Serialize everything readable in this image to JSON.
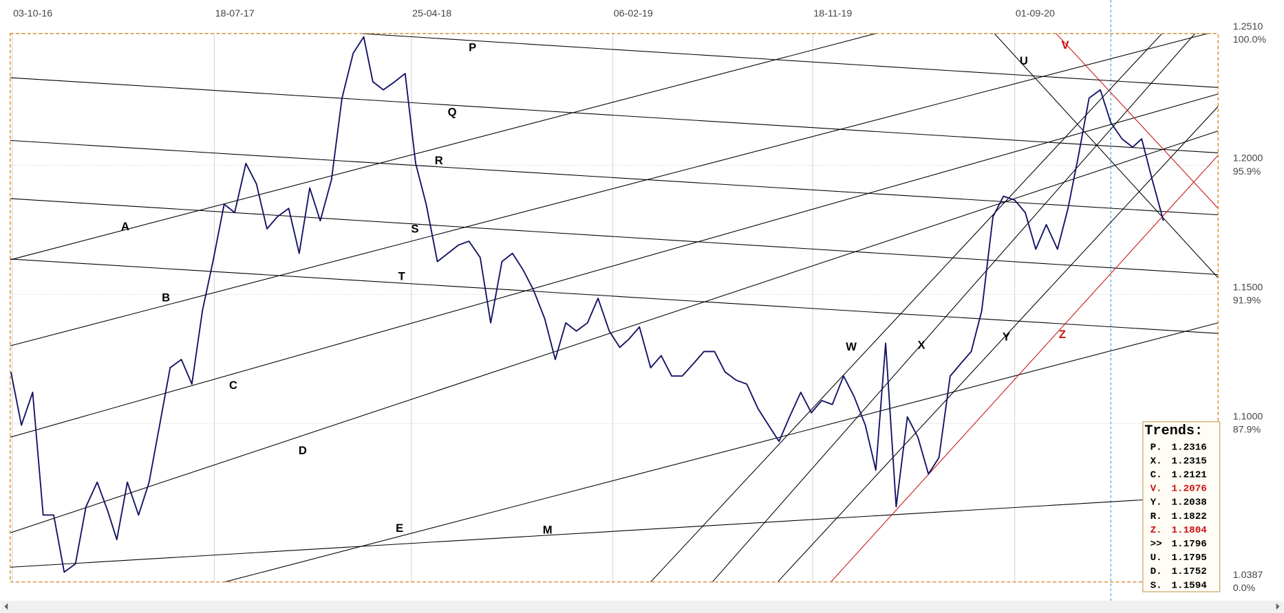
{
  "chart_data": {
    "type": "line",
    "color": "#141466",
    "xlim": [
      "2016-09-30",
      "2021-06-18"
    ],
    "xticks": [
      {
        "value": "2016-10-03",
        "label": "03-10-16"
      },
      {
        "value": "2017-07-18",
        "label": "18-07-17"
      },
      {
        "value": "2018-04-25",
        "label": "25-04-18"
      },
      {
        "value": "2019-02-06",
        "label": "06-02-19"
      },
      {
        "value": "2019-11-18",
        "label": "18-11-19"
      },
      {
        "value": "2020-09-01",
        "label": "01-09-20"
      }
    ],
    "ylim": [
      1.0387,
      1.251
    ],
    "yticks": [
      {
        "value": 1.251,
        "label": "1.2510"
      },
      {
        "value": 1.2,
        "label": "1.2000"
      },
      {
        "value": 1.15,
        "label": "1.1500"
      },
      {
        "value": 1.1,
        "label": "1.1000"
      },
      {
        "value": 1.0387,
        "label": "1.0387"
      }
    ],
    "ytick_percent_labels": [
      "100.0%",
      "95.9%",
      "91.9%",
      "87.9%",
      "0.0%"
    ],
    "grid": true,
    "crosshair_x": "2021-01-16",
    "x": [
      "2016-10-01",
      "2016-10-16",
      "2016-11-01",
      "2016-11-16",
      "2016-12-01",
      "2016-12-16",
      "2017-01-01",
      "2017-01-16",
      "2017-02-01",
      "2017-02-16",
      "2017-03-01",
      "2017-03-16",
      "2017-04-01",
      "2017-04-16",
      "2017-05-01",
      "2017-05-16",
      "2017-06-01",
      "2017-06-16",
      "2017-07-01",
      "2017-07-16",
      "2017-08-01",
      "2017-08-16",
      "2017-09-01",
      "2017-09-16",
      "2017-10-01",
      "2017-10-16",
      "2017-11-01",
      "2017-11-16",
      "2017-12-01",
      "2017-12-16",
      "2018-01-01",
      "2018-01-16",
      "2018-02-01",
      "2018-02-16",
      "2018-03-01",
      "2018-03-16",
      "2018-04-01",
      "2018-04-16",
      "2018-05-01",
      "2018-05-16",
      "2018-06-01",
      "2018-06-16",
      "2018-07-01",
      "2018-07-16",
      "2018-08-01",
      "2018-08-16",
      "2018-09-01",
      "2018-09-16",
      "2018-10-01",
      "2018-10-16",
      "2018-11-01",
      "2018-11-16",
      "2018-12-01",
      "2018-12-16",
      "2019-01-01",
      "2019-01-16",
      "2019-02-01",
      "2019-02-16",
      "2019-03-01",
      "2019-03-16",
      "2019-04-01",
      "2019-04-16",
      "2019-05-01",
      "2019-05-16",
      "2019-06-01",
      "2019-06-16",
      "2019-07-01",
      "2019-07-16",
      "2019-08-01",
      "2019-08-16",
      "2019-09-01",
      "2019-09-16",
      "2019-10-01",
      "2019-10-16",
      "2019-11-01",
      "2019-11-16",
      "2019-12-01",
      "2019-12-16",
      "2020-01-01",
      "2020-01-16",
      "2020-02-01",
      "2020-02-16",
      "2020-03-01",
      "2020-03-16",
      "2020-04-01",
      "2020-04-16",
      "2020-05-01",
      "2020-05-16",
      "2020-06-01",
      "2020-06-16",
      "2020-07-01",
      "2020-07-16",
      "2020-08-01",
      "2020-08-16",
      "2020-09-01",
      "2020-09-16",
      "2020-10-01",
      "2020-10-16",
      "2020-11-01",
      "2020-11-16",
      "2020-12-01",
      "2020-12-16",
      "2021-01-01",
      "2021-01-16",
      "2021-02-01",
      "2021-02-16",
      "2021-03-01",
      "2021-03-16",
      "2021-04-01"
    ],
    "values": [
      1.12,
      1.0994,
      1.1121,
      1.0646,
      1.0646,
      1.0425,
      1.0457,
      1.0678,
      1.0773,
      1.0662,
      1.0551,
      1.0773,
      1.0646,
      1.0773,
      1.0994,
      1.1216,
      1.1248,
      1.1153,
      1.1437,
      1.1627,
      1.1849,
      1.1817,
      1.2007,
      1.1928,
      1.1754,
      1.1801,
      1.1833,
      1.1659,
      1.1912,
      1.1785,
      1.1944,
      1.226,
      1.2434,
      1.2497,
      1.2323,
      1.2292,
      1.2323,
      1.2355,
      1.2007,
      1.1849,
      1.1627,
      1.1659,
      1.1691,
      1.1706,
      1.1643,
      1.139,
      1.1627,
      1.1659,
      1.1596,
      1.1517,
      1.1406,
      1.1248,
      1.139,
      1.1358,
      1.139,
      1.1485,
      1.1358,
      1.1295,
      1.1327,
      1.1374,
      1.1216,
      1.1263,
      1.1184,
      1.1184,
      1.1232,
      1.1279,
      1.1279,
      1.12,
      1.1168,
      1.1153,
      1.1058,
      1.0994,
      1.0931,
      1.1026,
      1.1121,
      1.1042,
      1.1089,
      1.1074,
      1.1184,
      1.1105,
      1.0994,
      1.082,
      1.1311,
      1.0678,
      1.1026,
      1.0947,
      1.0805,
      1.0868,
      1.1184,
      1.1232,
      1.1279,
      1.1437,
      1.1801,
      1.188,
      1.1865,
      1.1817,
      1.1675,
      1.177,
      1.1675,
      1.1833,
      1.2039,
      1.226,
      1.2292,
      1.2165,
      1.2102,
      1.207,
      1.2102,
      1.1944,
      1.1785
    ],
    "trend_lines": [
      {
        "label": "P",
        "color": "#000000",
        "points": [
          [
            "2018-02-11",
            1.251
          ],
          [
            "2021-06-18",
            1.2301
          ]
        ],
        "label_at": [
          "2018-07-21",
          1.2453
        ]
      },
      {
        "label": "Q",
        "color": "#000000",
        "points": [
          [
            "2016-09-30",
            1.2339
          ],
          [
            "2021-06-18",
            1.2048
          ]
        ],
        "label_at": [
          "2018-06-22",
          1.2203
        ]
      },
      {
        "label": "R",
        "color": "#000000",
        "points": [
          [
            "2016-09-30",
            1.2096
          ],
          [
            "2021-06-18",
            1.1808
          ]
        ],
        "label_at": [
          "2018-06-03",
          1.2016
        ]
      },
      {
        "label": "S",
        "color": "#000000",
        "points": [
          [
            "2016-09-30",
            1.1871
          ],
          [
            "2021-06-18",
            1.1577
          ]
        ],
        "label_at": [
          "2018-04-30",
          1.1751
        ]
      },
      {
        "label": "T",
        "color": "#000000",
        "points": [
          [
            "2016-09-30",
            1.1637
          ],
          [
            "2021-06-18",
            1.1349
          ]
        ],
        "label_at": [
          "2018-04-11",
          1.1567
        ]
      },
      {
        "label": "A",
        "color": "#000000",
        "points": [
          [
            "2016-09-30",
            1.1634
          ],
          [
            "2020-02-16",
            1.251
          ]
        ],
        "label_at": [
          "2017-03-13",
          1.176
        ]
      },
      {
        "label": "B",
        "color": "#000000",
        "points": [
          [
            "2016-09-30",
            1.1301
          ],
          [
            "2021-06-03",
            1.251
          ]
        ],
        "label_at": [
          "2017-05-10",
          1.1485
        ]
      },
      {
        "label": "C",
        "color": "#000000",
        "points": [
          [
            "2016-09-30",
            1.0947
          ],
          [
            "2021-06-18",
            1.2276
          ]
        ],
        "label_at": [
          "2017-08-14",
          1.1146
        ]
      },
      {
        "label": "D",
        "color": "#000000",
        "points": [
          [
            "2016-09-30",
            1.0577
          ],
          [
            "2021-06-18",
            1.2133
          ]
        ],
        "label_at": [
          "2017-11-21",
          1.0893
        ]
      },
      {
        "label": "E",
        "color": "#000000",
        "points": [
          [
            "2017-08-02",
            1.0387
          ],
          [
            "2021-06-18",
            1.139
          ]
        ],
        "label_at": [
          "2018-04-08",
          1.0593
        ]
      },
      {
        "label": "M",
        "color": "#000000",
        "points": [
          [
            "2016-09-30",
            1.0444
          ],
          [
            "2021-06-18",
            1.0722
          ]
        ],
        "label_at": [
          "2018-11-05",
          1.0586
        ]
      },
      {
        "label": "W",
        "color": "#000000",
        "points": [
          [
            "2019-04-01",
            1.0387
          ],
          [
            "2021-03-30",
            1.251
          ]
        ],
        "label_at": [
          "2020-01-12",
          1.1295
        ]
      },
      {
        "label": "X",
        "color": "#000000",
        "points": [
          [
            "2019-06-28",
            1.0387
          ],
          [
            "2021-05-16",
            1.251
          ]
        ],
        "label_at": [
          "2020-04-21",
          1.1301
        ]
      },
      {
        "label": "Y",
        "color": "#000000",
        "points": [
          [
            "2019-09-29",
            1.0387
          ],
          [
            "2021-06-18",
            1.2228
          ]
        ],
        "label_at": [
          "2020-08-20",
          1.1333
        ]
      },
      {
        "label": "Z",
        "color": "#cc1111",
        "points": [
          [
            "2019-12-14",
            1.0387
          ],
          [
            "2021-06-18",
            1.2039
          ]
        ],
        "label_at": [
          "2020-11-08",
          1.1342
        ]
      },
      {
        "label": "U",
        "color": "#000000",
        "points": [
          [
            "2020-08-03",
            1.251
          ],
          [
            "2021-06-18",
            1.1564
          ]
        ],
        "label_at": [
          "2020-09-14",
          1.2402
        ]
      },
      {
        "label": "V",
        "color": "#cc1111",
        "points": [
          [
            "2020-10-30",
            1.251
          ],
          [
            "2021-06-18",
            1.1833
          ]
        ],
        "label_at": [
          "2020-11-12",
          1.2463
        ]
      }
    ],
    "trends": {
      "title": "Trends:",
      "rows": [
        {
          "name": "P.",
          "value": 1.2316,
          "color": "#000000"
        },
        {
          "name": "X.",
          "value": 1.2315,
          "color": "#000000"
        },
        {
          "name": "C.",
          "value": 1.2121,
          "color": "#000000"
        },
        {
          "name": "V.",
          "value": 1.2076,
          "color": "#cc1111"
        },
        {
          "name": "Y.",
          "value": 1.2038,
          "color": "#000000"
        },
        {
          "name": "R.",
          "value": 1.1822,
          "color": "#000000"
        },
        {
          "name": "Z.",
          "value": 1.1804,
          "color": "#cc1111"
        },
        {
          "name": ">>",
          "value": 1.1796,
          "color": "#000000"
        },
        {
          "name": "U.",
          "value": 1.1795,
          "color": "#000000"
        },
        {
          "name": "D.",
          "value": 1.1752,
          "color": "#000000"
        },
        {
          "name": "S.",
          "value": 1.1594,
          "color": "#000000"
        }
      ]
    }
  }
}
